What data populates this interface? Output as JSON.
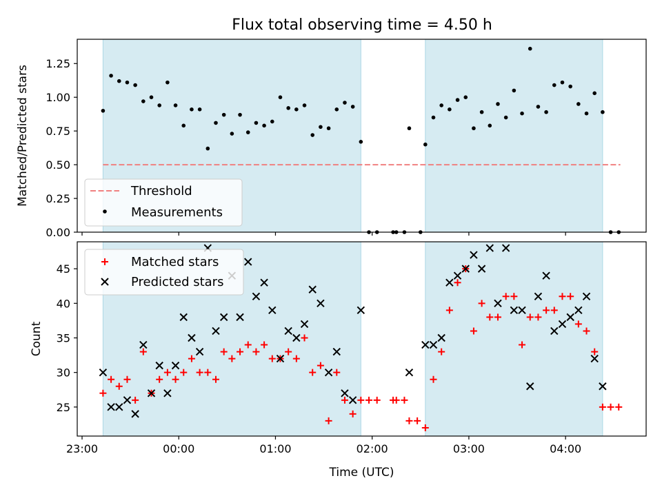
{
  "title": "Flux total observing time = 4.50 h",
  "colors": {
    "shade": "#add8e6",
    "threshold": "#f08080",
    "measurements": "#000000",
    "matched": "#ff0000",
    "predicted": "#000000"
  },
  "chart_data": [
    {
      "type": "scatter",
      "panel": "top",
      "ylabel": "Matched/Predicted stars",
      "xlabel": "",
      "ylim": [
        0,
        1.43
      ],
      "yticks": [
        "0.00",
        "0.25",
        "0.50",
        "0.75",
        "1.00",
        "1.25"
      ],
      "ytick_values": [
        0,
        0.25,
        0.5,
        0.75,
        1.0,
        1.25
      ],
      "legend": "lower-left",
      "grid": false,
      "shaded_intervals": [
        [
          "23:13",
          "01:53"
        ],
        [
          "02:33",
          "04:23"
        ]
      ],
      "threshold": {
        "name": "Threshold",
        "y": 0.5,
        "x_range": [
          "23:13",
          "04:34"
        ]
      },
      "series": [
        {
          "name": "Measurements",
          "points": [
            [
              "23:13",
              0.9
            ],
            [
              "23:18",
              1.16
            ],
            [
              "23:23",
              1.12
            ],
            [
              "23:28",
              1.11
            ],
            [
              "23:33",
              1.09
            ],
            [
              "23:38",
              0.97
            ],
            [
              "23:43",
              1.0
            ],
            [
              "23:48",
              0.94
            ],
            [
              "23:53",
              1.11
            ],
            [
              "23:58",
              0.94
            ],
            [
              "00:03",
              0.79
            ],
            [
              "00:08",
              0.91
            ],
            [
              "00:13",
              0.91
            ],
            [
              "00:18",
              0.62
            ],
            [
              "00:23",
              0.81
            ],
            [
              "00:28",
              0.87
            ],
            [
              "00:33",
              0.73
            ],
            [
              "00:38",
              0.87
            ],
            [
              "00:43",
              0.74
            ],
            [
              "00:48",
              0.81
            ],
            [
              "00:53",
              0.79
            ],
            [
              "00:58",
              0.82
            ],
            [
              "01:03",
              1.0
            ],
            [
              "01:08",
              0.92
            ],
            [
              "01:13",
              0.91
            ],
            [
              "01:18",
              0.94
            ],
            [
              "01:23",
              0.72
            ],
            [
              "01:28",
              0.78
            ],
            [
              "01:33",
              0.77
            ],
            [
              "01:38",
              0.91
            ],
            [
              "01:43",
              0.96
            ],
            [
              "01:48",
              0.93
            ],
            [
              "01:53",
              0.67
            ],
            [
              "01:58",
              0.0
            ],
            [
              "02:03",
              0.0
            ],
            [
              "02:13",
              0.0
            ],
            [
              "02:15",
              0.0
            ],
            [
              "02:20",
              0.0
            ],
            [
              "02:23",
              0.77
            ],
            [
              "02:30",
              0.0
            ],
            [
              "02:33",
              0.65
            ],
            [
              "02:38",
              0.85
            ],
            [
              "02:43",
              0.94
            ],
            [
              "02:48",
              0.91
            ],
            [
              "02:53",
              0.98
            ],
            [
              "02:58",
              1.0
            ],
            [
              "03:03",
              0.77
            ],
            [
              "03:08",
              0.89
            ],
            [
              "03:13",
              0.79
            ],
            [
              "03:18",
              0.95
            ],
            [
              "03:23",
              0.85
            ],
            [
              "03:28",
              1.05
            ],
            [
              "03:33",
              0.88
            ],
            [
              "03:38",
              1.36
            ],
            [
              "03:43",
              0.93
            ],
            [
              "03:48",
              0.89
            ],
            [
              "03:53",
              1.09
            ],
            [
              "03:58",
              1.11
            ],
            [
              "04:03",
              1.08
            ],
            [
              "04:08",
              0.95
            ],
            [
              "04:13",
              0.88
            ],
            [
              "04:18",
              1.03
            ],
            [
              "04:23",
              0.89
            ],
            [
              "04:28",
              0.0
            ],
            [
              "04:33",
              0.0
            ]
          ]
        }
      ]
    },
    {
      "type": "scatter",
      "panel": "bottom",
      "ylabel": "Count",
      "xlabel": "Time (UTC)",
      "ylim": [
        20.8,
        48.9
      ],
      "yticks": [
        "25",
        "30",
        "35",
        "40",
        "45"
      ],
      "ytick_values": [
        25,
        30,
        35,
        40,
        45
      ],
      "xlim": [
        "22:57",
        "04:50"
      ],
      "xticks": [
        "23:00",
        "00:00",
        "01:00",
        "02:00",
        "03:00",
        "04:00"
      ],
      "legend": "top-left",
      "grid": false,
      "series": [
        {
          "name": "Matched stars",
          "marker": "+",
          "points": [
            [
              "23:13",
              27
            ],
            [
              "23:18",
              29
            ],
            [
              "23:23",
              28
            ],
            [
              "23:28",
              29
            ],
            [
              "23:33",
              26
            ],
            [
              "23:38",
              33
            ],
            [
              "23:43",
              27
            ],
            [
              "23:48",
              29
            ],
            [
              "23:53",
              30
            ],
            [
              "23:58",
              29
            ],
            [
              "00:03",
              30
            ],
            [
              "00:08",
              32
            ],
            [
              "00:13",
              30
            ],
            [
              "00:18",
              30
            ],
            [
              "00:23",
              29
            ],
            [
              "00:28",
              33
            ],
            [
              "00:33",
              32
            ],
            [
              "00:38",
              33
            ],
            [
              "00:43",
              34
            ],
            [
              "00:48",
              33
            ],
            [
              "00:53",
              34
            ],
            [
              "00:58",
              32
            ],
            [
              "01:03",
              32
            ],
            [
              "01:08",
              33
            ],
            [
              "01:13",
              32
            ],
            [
              "01:18",
              35
            ],
            [
              "01:23",
              30
            ],
            [
              "01:28",
              31
            ],
            [
              "01:33",
              23
            ],
            [
              "01:38",
              30
            ],
            [
              "01:43",
              26
            ],
            [
              "01:48",
              24
            ],
            [
              "01:53",
              26
            ],
            [
              "01:58",
              26
            ],
            [
              "02:03",
              26
            ],
            [
              "02:13",
              26
            ],
            [
              "02:15",
              26
            ],
            [
              "02:20",
              26
            ],
            [
              "02:23",
              23
            ],
            [
              "02:28",
              23
            ],
            [
              "02:33",
              22
            ],
            [
              "02:38",
              29
            ],
            [
              "02:43",
              33
            ],
            [
              "02:48",
              39
            ],
            [
              "02:53",
              43
            ],
            [
              "02:58",
              45
            ],
            [
              "03:03",
              36
            ],
            [
              "03:08",
              40
            ],
            [
              "03:13",
              38
            ],
            [
              "03:18",
              38
            ],
            [
              "03:23",
              41
            ],
            [
              "03:28",
              41
            ],
            [
              "03:33",
              34
            ],
            [
              "03:38",
              38
            ],
            [
              "03:43",
              38
            ],
            [
              "03:48",
              39
            ],
            [
              "03:53",
              39
            ],
            [
              "03:58",
              41
            ],
            [
              "04:03",
              41
            ],
            [
              "04:08",
              37
            ],
            [
              "04:13",
              36
            ],
            [
              "04:18",
              33
            ],
            [
              "04:23",
              25
            ],
            [
              "04:28",
              25
            ],
            [
              "04:33",
              25
            ]
          ]
        },
        {
          "name": "Predicted stars",
          "marker": "x",
          "points": [
            [
              "23:13",
              30
            ],
            [
              "23:18",
              25
            ],
            [
              "23:23",
              25
            ],
            [
              "23:28",
              26
            ],
            [
              "23:33",
              24
            ],
            [
              "23:38",
              34
            ],
            [
              "23:43",
              27
            ],
            [
              "23:48",
              31
            ],
            [
              "23:53",
              27
            ],
            [
              "23:58",
              31
            ],
            [
              "00:03",
              38
            ],
            [
              "00:08",
              35
            ],
            [
              "00:13",
              33
            ],
            [
              "00:18",
              48
            ],
            [
              "00:23",
              36
            ],
            [
              "00:28",
              38
            ],
            [
              "00:33",
              44
            ],
            [
              "00:38",
              38
            ],
            [
              "00:43",
              46
            ],
            [
              "00:48",
              41
            ],
            [
              "00:53",
              43
            ],
            [
              "00:58",
              39
            ],
            [
              "01:03",
              32
            ],
            [
              "01:08",
              36
            ],
            [
              "01:13",
              35
            ],
            [
              "01:18",
              37
            ],
            [
              "01:23",
              42
            ],
            [
              "01:28",
              40
            ],
            [
              "01:33",
              30
            ],
            [
              "01:38",
              33
            ],
            [
              "01:43",
              27
            ],
            [
              "01:48",
              26
            ],
            [
              "01:53",
              39
            ],
            [
              "02:23",
              30
            ],
            [
              "02:33",
              34
            ],
            [
              "02:38",
              34
            ],
            [
              "02:43",
              35
            ],
            [
              "02:48",
              43
            ],
            [
              "02:53",
              44
            ],
            [
              "02:58",
              45
            ],
            [
              "03:03",
              47
            ],
            [
              "03:08",
              45
            ],
            [
              "03:13",
              48
            ],
            [
              "03:18",
              40
            ],
            [
              "03:23",
              48
            ],
            [
              "03:28",
              39
            ],
            [
              "03:33",
              39
            ],
            [
              "03:38",
              28
            ],
            [
              "03:43",
              41
            ],
            [
              "03:48",
              44
            ],
            [
              "03:53",
              36
            ],
            [
              "03:58",
              37
            ],
            [
              "04:03",
              38
            ],
            [
              "04:08",
              39
            ],
            [
              "04:13",
              41
            ],
            [
              "04:18",
              32
            ],
            [
              "04:23",
              28
            ]
          ]
        }
      ]
    }
  ]
}
